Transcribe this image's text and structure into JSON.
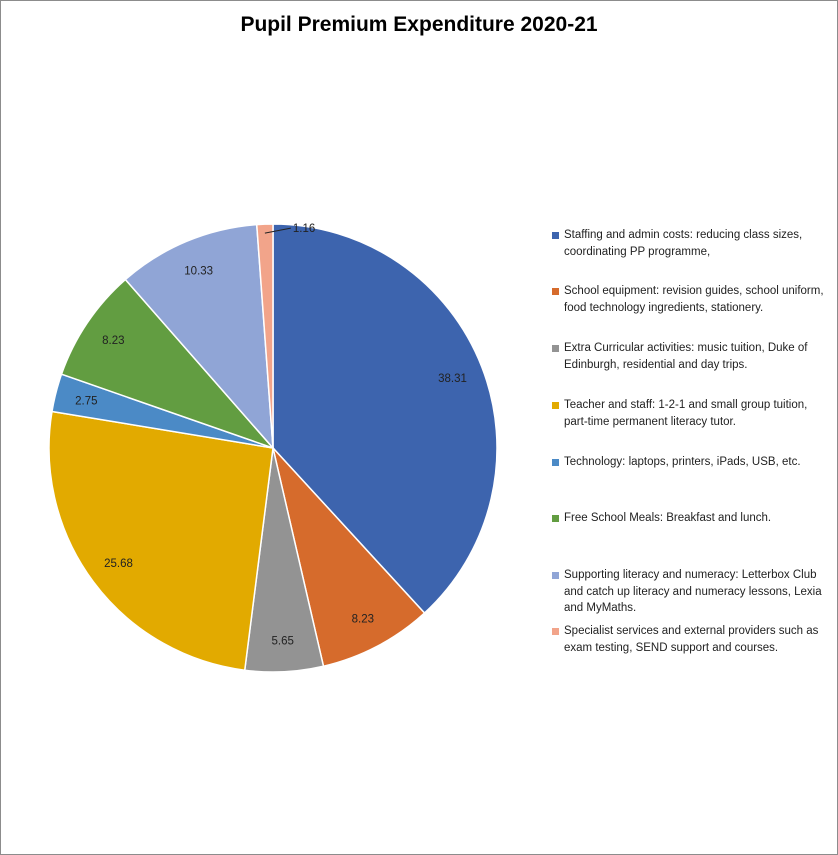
{
  "chart_data": {
    "type": "pie",
    "title": "Pupil Premium Expenditure 2020-21",
    "legend_position": "right",
    "slices": [
      {
        "label": " Staffing and admin costs: reducing class sizes, coordinating PP programme,",
        "value": 38.31,
        "color": "#3d64ae"
      },
      {
        "label": "School equipment: revision guides, school uniform, food technology ingredients, stationery.",
        "value": 8.23,
        "color": "#d66b2c"
      },
      {
        "label": "Extra Curricular activities: music tuition, Duke of Edinburgh, residential and day trips.",
        "value": 5.65,
        "color": "#939393"
      },
      {
        "label": "Teacher and staff: 1-2-1 and small group tuition, part-time permanent literacy tutor.",
        "value": 25.68,
        "color": "#e2aa00"
      },
      {
        "label": "Technology: laptops, printers, iPads, USB, etc.",
        "value": 2.75,
        "color": "#4b8ac6"
      },
      {
        "label": "Free School Meals: Breakfast and lunch.",
        "value": 8.23,
        "color": "#629d41"
      },
      {
        "label": "Supporting literacy and numeracy: Letterbox Club and catch up literacy and numeracy lessons, Lexia and MyMaths.",
        "value": 10.33,
        "color": "#90a5d6"
      },
      {
        "label": "Specialist services and external providers such as exam testing, SEND support and courses.",
        "value": 1.16,
        "color": "#f2a48a"
      }
    ]
  }
}
